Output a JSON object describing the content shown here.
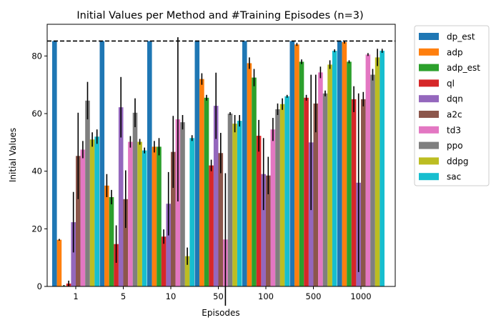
{
  "chart_data": {
    "type": "bar",
    "title": "Initial Values per Method and #Training Episodes (n=3)",
    "xlabel": "Episodes",
    "ylabel": "Initial Values",
    "categories": [
      "1",
      "5",
      "10",
      "50",
      "100",
      "500",
      "1000"
    ],
    "ylim": [
      0,
      91
    ],
    "yticks": [
      0,
      20,
      40,
      60,
      80
    ],
    "reference_line": {
      "value": 85.2,
      "style": "dashed",
      "color": "#000000"
    },
    "legend_position": "outside-top-right",
    "series": [
      {
        "name": "dp_est",
        "color": "#1f77b4",
        "values": [
          85.2,
          85.2,
          85.2,
          85.2,
          85.2,
          85.2,
          85.2
        ],
        "err": [
          0,
          0,
          0,
          0,
          0,
          0,
          0
        ]
      },
      {
        "name": "adp",
        "color": "#ff7f0e",
        "values": [
          16.2,
          35,
          48.5,
          72,
          77.5,
          84,
          84.8
        ],
        "err": [
          0.3,
          4,
          2,
          2,
          2,
          0.5,
          0.5
        ]
      },
      {
        "name": "adp_est",
        "color": "#2ca02c",
        "values": [
          0.2,
          31,
          48.5,
          65.5,
          72.5,
          78,
          78
        ],
        "err": [
          0.3,
          2.5,
          3,
          1,
          3,
          0.8,
          0.5
        ]
      },
      {
        "name": "ql",
        "color": "#d62728",
        "values": [
          1,
          14.7,
          17.3,
          42,
          52.3,
          65.5,
          65
        ],
        "err": [
          1,
          6.5,
          2.5,
          2,
          5.5,
          1,
          4.5
        ]
      },
      {
        "name": "dqn",
        "color": "#9467bd",
        "values": [
          22.3,
          62.2,
          28.7,
          62.7,
          39,
          50,
          36
        ],
        "err": [
          10.5,
          10.5,
          11,
          11.5,
          12.5,
          23.5,
          31
        ]
      },
      {
        "name": "a2c",
        "color": "#8c564b",
        "values": [
          45.3,
          30.3,
          46.7,
          46.3,
          38.5,
          63.5,
          65
        ],
        "err": [
          15,
          10,
          12.5,
          7,
          6.5,
          10,
          2.5
        ]
      },
      {
        "name": "td3",
        "color": "#e377c2",
        "values": [
          47.5,
          50.2,
          58,
          16.3,
          54.5,
          74.3,
          80.5
        ],
        "err": [
          3,
          2,
          28.5,
          23,
          4,
          2,
          0.5
        ]
      },
      {
        "name": "ppo",
        "color": "#7f7f7f",
        "values": [
          64.5,
          60.3,
          57,
          60,
          61.5,
          67,
          73.5
        ],
        "err": [
          6.5,
          5,
          2.5,
          0.5,
          2,
          1,
          2
        ]
      },
      {
        "name": "ddpg",
        "color": "#bcbd22",
        "values": [
          51,
          50.2,
          10.5,
          56.5,
          63.3,
          77,
          79.5
        ],
        "err": [
          2.5,
          1,
          3,
          3,
          2,
          1.5,
          3
        ]
      },
      {
        "name": "sac",
        "color": "#17becf",
        "values": [
          52,
          47.2,
          51.5,
          57.5,
          66,
          81.8,
          81.8
        ],
        "err": [
          2.5,
          1,
          1,
          2,
          0.5,
          0.5,
          0.7
        ]
      }
    ]
  }
}
